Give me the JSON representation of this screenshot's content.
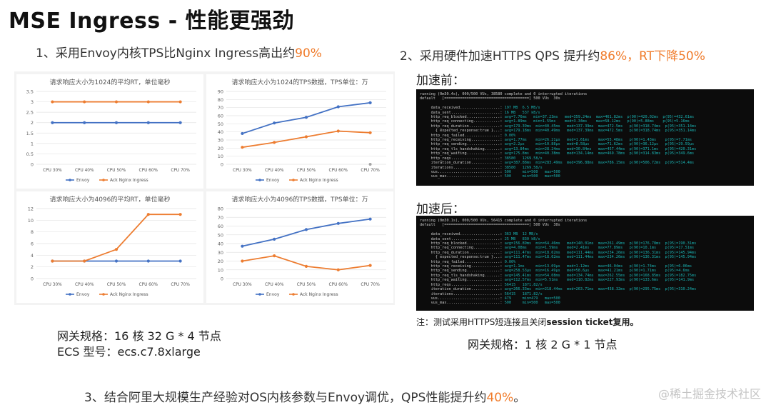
{
  "title": "MSE Ingress - 性能更强劲",
  "point1": {
    "text": "1、采用Envoy内核TPS比Nginx Ingress高出约",
    "highlight": "90%"
  },
  "point2": {
    "text": "2、采用硬件加速HTTPS QPS 提升约",
    "highlight1": "86%",
    "mid": "，RT下降",
    "highlight2": "50%"
  },
  "point3": {
    "text": "3、结合阿里大规模生产经验对OS内核参数与Envoy调优，QPS性能提升约",
    "highlight": "40%",
    "suffix": "。"
  },
  "colors": {
    "envoy": "#4472c4",
    "nginx": "#ed7d31",
    "highlight": "#f07b2a"
  },
  "chart_data": [
    {
      "type": "line",
      "title": "请求响应大小为1024的平均RT，单位毫秒",
      "categories": [
        "CPU 30%",
        "CPU 40%",
        "CPU 50%",
        "CPU 60%",
        "CPU 70%"
      ],
      "ylim": [
        0,
        3.5
      ],
      "yticks": [
        "0",
        "0.5",
        "1",
        "1.5",
        "2",
        "2.5",
        "3",
        "3.5"
      ],
      "series": [
        {
          "name": "Envoy",
          "values": [
            2,
            2,
            2,
            2,
            2
          ]
        },
        {
          "name": "Ack Nginx Ingress",
          "values": [
            3,
            3,
            3,
            3,
            3
          ]
        }
      ],
      "legend": "bottom"
    },
    {
      "type": "line",
      "title": "请求响应大小为1024的TPS数据，TPS单位：万",
      "categories": [
        "CPU 30%",
        "CPU 40%",
        "CPU 50%",
        "CPU 60%",
        "CPU 70%"
      ],
      "ylim": [
        0,
        90
      ],
      "yticks": [
        "0",
        "10",
        "20",
        "30",
        "40",
        "50",
        "60",
        "70",
        "80",
        "90"
      ],
      "series": [
        {
          "name": "Envoy",
          "values": [
            38,
            51,
            58,
            71,
            76
          ]
        },
        {
          "name": "Ack Nginx Ingress",
          "values": [
            21,
            27,
            34,
            41,
            39
          ]
        }
      ],
      "extra_point": {
        "category_index": 4,
        "value": 0,
        "color": "#a5a5a5"
      },
      "legend": "bottom"
    },
    {
      "type": "line",
      "title": "请求响应大小为4096的平均RT，单位毫秒",
      "categories": [
        "CPU 30%",
        "CPU 40%",
        "CPU 50%",
        "CPU 60%",
        "CPU 70%"
      ],
      "ylim": [
        0,
        12
      ],
      "yticks": [
        "0",
        "2",
        "4",
        "6",
        "8",
        "10",
        "12"
      ],
      "series": [
        {
          "name": "Envoy",
          "values": [
            3,
            3,
            3,
            3,
            3
          ]
        },
        {
          "name": "Ack Nginx Ingress",
          "values": [
            3,
            3,
            5,
            11,
            11
          ]
        }
      ],
      "legend": "bottom"
    },
    {
      "type": "line",
      "title": "请求响应大小为4096的TPS数据，TPS单位：万",
      "categories": [
        "CPU 30%",
        "CPU 40%",
        "CPU 50%",
        "CPU 60%",
        "CPU 70%"
      ],
      "ylim": [
        0,
        80
      ],
      "yticks": [
        "0",
        "10",
        "20",
        "30",
        "40",
        "50",
        "60",
        "70",
        "80"
      ],
      "series": [
        {
          "name": "Envoy",
          "values": [
            37,
            45,
            56,
            63,
            68
          ]
        },
        {
          "name": "Ack Nginx Ingress",
          "values": [
            20,
            26,
            14,
            10,
            15
          ]
        }
      ],
      "legend": "bottom"
    }
  ],
  "before": {
    "label": "加速前：",
    "lines": [
      "running (0m30.4s), 000/500 VUs, 38580 complete and 0 interrupted iterations",
      "default   [======================================] 500 VUs  30s",
      "",
      "     data_received..................: 197 MB  6.5 MB/s",
      "     data_sent......................: 16 MB   537 kB/s",
      "     http_req_blocked...............: avg=7.76ms   min=37.23ms   med=359.24ms  max=461.82ms  p(90)=420.02ms  p(95)=432.61ms",
      "     http_req_connecting............: avg=1.89ms   min=1.55ms    med=3.34ms    max=58.12ms   p(90)=5.88ms    p(95)=5.16ms",
      "     http_req_duration..............: avg=179.39ms  min=40.45ms   med=137.39ms  max=472.5ms   p(90)=318.74ms  p(95)=351.14ms",
      "       { expected_response:true }...: avg=179.18ms  min=40.49ms   med=137.39ms  max=472.5ms   p(90)=318.74ms  p(95)=351.14ms",
      "     http_req_failed................: 0.00%",
      "     http_req_receiving.............: avg=1.77ms    min=26.21µs   med=1.61ms    max=55.48ms   p(90)=1.43ms    p(95)=7.71ms",
      "     http_req_sending...............: avg=2.2µs     min=10.88µs   med=8.58µs    max=71.62ms   p(90)=36.12µs   p(95)=29.59µs",
      "     http_req_tls_handshaking.......: avg=13.84ms   min=28.24ms   med=30.84ms   max=457.44ms  p(90)=371.1ms   p(95)=420.31ms",
      "     http_req_waiting...............: avg=175.8ms   min=40.38ms   med=134.14ms  max=469.78ms  p(90)=314.83ms  p(95)=349.6ms",
      "     http_reqs......................: 38580   1269.58/s",
      "     iteration_duration.............: avg=387.88ms  min=283.49ms  med=396.88ms  max=786.15ms  p(90)=506.72ms  p(95)=514.4ms",
      "     iterations.....................: 38580   1269.58/s",
      "     vus............................: 500     min=500   max=500",
      "     vus_max........................: 500     min=500   max=500"
    ]
  },
  "after": {
    "label": "加速后：",
    "lines": [
      "running (0m30.1s), 000/500 VUs, 56415 complete and 0 interrupted iterations",
      "default   [======================================] 500 VUs  30s",
      "",
      "     data_received..................: 363 MB  12 MB/s",
      "     data_sent......................: 25 MB   830 kB/s",
      "     http_req_blocked...............: avg=156.89ms  min=64.46ms   med=140.01ms  max=261.49ms  p(90)=176.78ms  p(95)=190.31ms",
      "     http_req_connecting............: avg=4.08ms    min=1.59ms    med=2.41ms    max=77.89ms   p(90)=10.1ms    p(95)=17.51ms",
      "     http_req_duration..............: avg=111.47ms  min=18.62ms   med=111.44ms  max=234.26ms  p(90)=136.31ms  p(95)=145.94ms",
      "       { expected_response:true }...: avg=111.47ms  min=18.62ms   med=111.44ms  max=234.26ms  p(90)=136.31ms  p(95)=145.94ms",
      "     http_req_failed................: 0.00%",
      "     http_req_receiving.............: avg=1.1ms     min=13.09µs   med=1.12ms    max=46.04ms   p(90)=1.74ms    p(95)=6.06ms",
      "     http_req_sending...............: avg=258.53µs  min=16.49µs   med=58.6µs    max=41.21ms   p(90)=1.71ms    p(95)=4.6ms",
      "     http_req_tls_handshaking.......: avg=145.41ms  min=54.08ms   med=134.74ms  max=262.55ms  p(90)=168.85ms  p(95)=182.75ms",
      "     http_req_waiting...............: avg=112.57ms  min=5.51ms    med=110.82ms  max=227.93ms  p(90)=133.6ms   p(95)=141.9ms",
      "     http_reqs......................: 56415   1871.82/s",
      "     iteration_duration.............: avg=266.33ms  min=218.44ms  med=263.71ms  max=438.32ms  p(90)=295.75ms  p(95)=310.24ms",
      "     iterations.....................: 56415   1871.82/s",
      "     vus............................: 479     min=479   max=500",
      "     vus_max........................: 500     min=500   max=500"
    ]
  },
  "note": {
    "prefix": "注：测试采用HTTPS短连接且关闭",
    "bold": "session ticket复用。"
  },
  "spec_left": {
    "line1": "网关规格：16 核 32 G * 4 节点",
    "line2": "ECS 型号：ecs.c7.8xlarge"
  },
  "spec_right": "网关规格：1 核 2 G * 1 节点",
  "watermark": "@稀土掘金技术社区"
}
